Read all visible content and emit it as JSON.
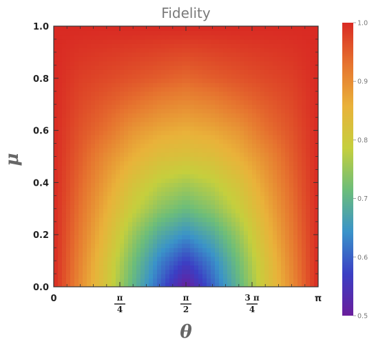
{
  "chart_data": {
    "type": "heatmap",
    "title": "Fidelity",
    "xlabel": "θ",
    "ylabel": "μ",
    "xlim": [
      0,
      3.14159
    ],
    "ylim": [
      0,
      1.0
    ],
    "x_ticks": [
      {
        "value": 0,
        "label": "0"
      },
      {
        "value": 0.7854,
        "num": "π",
        "den": "4"
      },
      {
        "value": 1.5708,
        "num": "π",
        "den": "2"
      },
      {
        "value": 2.3562,
        "num": "3 π",
        "den": "4"
      },
      {
        "value": 3.14159,
        "label": "π"
      }
    ],
    "y_ticks": [
      {
        "value": 0.0,
        "label": "0.0"
      },
      {
        "value": 0.2,
        "label": "0.2"
      },
      {
        "value": 0.4,
        "label": "0.4"
      },
      {
        "value": 0.6,
        "label": "0.6"
      },
      {
        "value": 0.8,
        "label": "0.8"
      },
      {
        "value": 1.0,
        "label": "1.0"
      }
    ],
    "colorbar": {
      "range": [
        0.5,
        1.0
      ],
      "ticks": [
        "0.5",
        "0.6",
        "0.7",
        "0.8",
        "0.9",
        "1.0"
      ],
      "colors": [
        "#6a1e9c",
        "#3b3fc4",
        "#3a93c9",
        "#6cbd7a",
        "#c5cf3d",
        "#e9b23a",
        "#e6742f",
        "#d92a23"
      ]
    },
    "z_grid": {
      "x": [
        0,
        0.3142,
        0.6283,
        0.9425,
        1.2566,
        1.5708,
        1.885,
        2.1991,
        2.5133,
        2.8274,
        3.1416
      ],
      "y": [
        0.0,
        0.1,
        0.2,
        0.3,
        0.4,
        0.5,
        0.6,
        0.7,
        0.8,
        0.9,
        1.0
      ],
      "values": [
        [
          1.0,
          0.9,
          0.81,
          0.7,
          0.6,
          0.5,
          0.6,
          0.7,
          0.81,
          0.9,
          1.0
        ],
        [
          1.0,
          0.91,
          0.82,
          0.72,
          0.63,
          0.57,
          0.63,
          0.72,
          0.82,
          0.91,
          1.0
        ],
        [
          1.0,
          0.92,
          0.84,
          0.75,
          0.68,
          0.64,
          0.68,
          0.75,
          0.84,
          0.92,
          1.0
        ],
        [
          1.0,
          0.93,
          0.86,
          0.79,
          0.74,
          0.71,
          0.74,
          0.79,
          0.86,
          0.93,
          1.0
        ],
        [
          1.0,
          0.94,
          0.88,
          0.82,
          0.78,
          0.76,
          0.78,
          0.82,
          0.88,
          0.94,
          1.0
        ],
        [
          1.0,
          0.95,
          0.9,
          0.86,
          0.83,
          0.82,
          0.83,
          0.86,
          0.9,
          0.95,
          1.0
        ],
        [
          1.0,
          0.96,
          0.93,
          0.89,
          0.87,
          0.86,
          0.87,
          0.89,
          0.93,
          0.96,
          1.0
        ],
        [
          1.0,
          0.97,
          0.95,
          0.93,
          0.91,
          0.9,
          0.91,
          0.93,
          0.95,
          0.97,
          1.0
        ],
        [
          1.0,
          0.98,
          0.97,
          0.96,
          0.95,
          0.94,
          0.95,
          0.96,
          0.97,
          0.98,
          1.0
        ],
        [
          1.0,
          0.99,
          0.985,
          0.98,
          0.975,
          0.97,
          0.975,
          0.98,
          0.985,
          0.99,
          1.0
        ],
        [
          1.0,
          1.0,
          1.0,
          1.0,
          1.0,
          1.0,
          1.0,
          1.0,
          1.0,
          1.0,
          1.0
        ]
      ]
    }
  }
}
